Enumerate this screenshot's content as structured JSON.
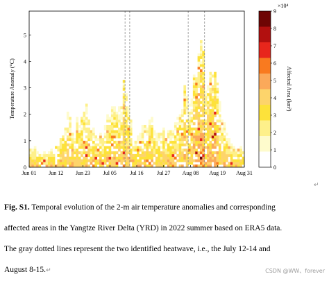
{
  "chart_data": {
    "type": "heatmap",
    "title": "",
    "xlabel": "",
    "ylabel": "Temperature Anomaly (°C)",
    "xticks": [
      "Jun 01",
      "Jun 12",
      "Jun 23",
      "Jul 05",
      "Jul 16",
      "Jul 27",
      "Aug 08",
      "Aug 19",
      "Aug 31"
    ],
    "yticks": [
      "0",
      "1",
      "2",
      "3",
      "4",
      "5"
    ],
    "ylim": [
      0,
      5.9
    ],
    "xlim_days": [
      0,
      92
    ],
    "colorbar": {
      "label": "Affected Area (km²)",
      "exponent": "×10⁴",
      "ticks": [
        "0",
        "1",
        "2",
        "3",
        "4",
        "5",
        "6",
        "7",
        "8",
        "9"
      ],
      "colors": [
        "#ffffff",
        "#fefbcc",
        "#fef08a",
        "#fde23a",
        "#fdd46b",
        "#fba95a",
        "#f97a1f",
        "#e8261c",
        "#b2100f",
        "#6e0504"
      ]
    },
    "heatwave_markers": [
      {
        "label": "July 12-14",
        "start_day": 41,
        "end_day": 43
      },
      {
        "label": "August 8-15",
        "start_day": 68,
        "end_day": 75
      }
    ],
    "peak_anomaly_by_day": [
      {
        "day": 2,
        "anomaly": 0.8
      },
      {
        "day": 6,
        "anomaly": 0.5
      },
      {
        "day": 10,
        "anomaly": 0.6
      },
      {
        "day": 14,
        "anomaly": 1.3
      },
      {
        "day": 17,
        "anomaly": 2.0
      },
      {
        "day": 19,
        "anomaly": 1.2
      },
      {
        "day": 23,
        "anomaly": 2.6
      },
      {
        "day": 26,
        "anomaly": 1.8
      },
      {
        "day": 30,
        "anomaly": 1.2
      },
      {
        "day": 34,
        "anomaly": 2.0
      },
      {
        "day": 38,
        "anomaly": 2.2
      },
      {
        "day": 40,
        "anomaly": 3.2
      },
      {
        "day": 42,
        "anomaly": 2.5
      },
      {
        "day": 45,
        "anomaly": 1.0
      },
      {
        "day": 49,
        "anomaly": 1.6
      },
      {
        "day": 53,
        "anomaly": 1.8
      },
      {
        "day": 57,
        "anomaly": 1.5
      },
      {
        "day": 61,
        "anomaly": 1.2
      },
      {
        "day": 64,
        "anomaly": 2.3
      },
      {
        "day": 66,
        "anomaly": 3.2
      },
      {
        "day": 68,
        "anomaly": 2.8
      },
      {
        "day": 70,
        "anomaly": 3.0
      },
      {
        "day": 72,
        "anomaly": 4.7
      },
      {
        "day": 74,
        "anomaly": 4.5
      },
      {
        "day": 76,
        "anomaly": 3.2
      },
      {
        "day": 78,
        "anomaly": 3.6
      },
      {
        "day": 80,
        "anomaly": 3.7
      },
      {
        "day": 82,
        "anomaly": 2.2
      },
      {
        "day": 85,
        "anomaly": 1.0
      },
      {
        "day": 89,
        "anomaly": 0.7
      }
    ]
  },
  "caption": {
    "label": "Fig. S1.",
    "line1": "Temporal evolution of the 2-m air temperature anomalies and corresponding",
    "line2": "affected areas in the Yangtze River Delta (YRD) in 2022 summer based on ERA5 data.",
    "line3": "The gray dotted lines represent the two identified heatwave, i.e., the July 12-14 and",
    "line4": "August 8-15.",
    "para_mark": "↵"
  },
  "watermark": "CSDN @WW、forever"
}
